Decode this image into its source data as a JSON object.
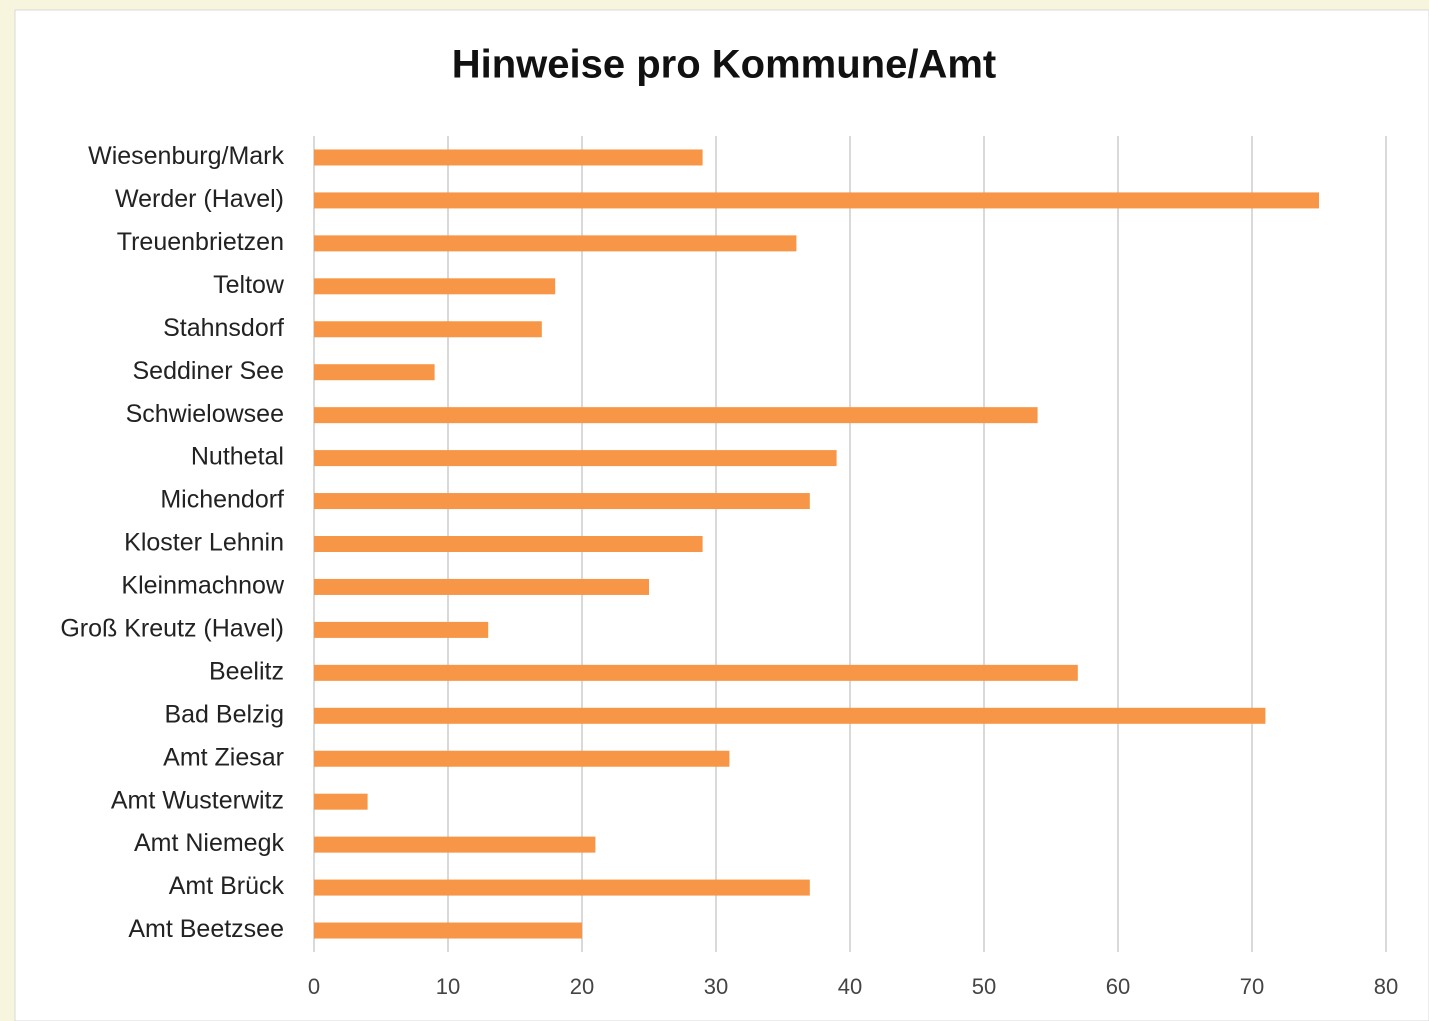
{
  "chart_data": {
    "type": "bar",
    "orientation": "horizontal",
    "title": "Hinweise pro Kommune/Amt",
    "categories": [
      "Wiesenburg/Mark",
      "Werder (Havel)",
      "Treuenbrietzen",
      "Teltow",
      "Stahnsdorf",
      "Seddiner See",
      "Schwielowsee",
      "Nuthetal",
      "Michendorf",
      "Kloster Lehnin",
      "Kleinmachnow",
      "Groß Kreutz (Havel)",
      "Beelitz",
      "Bad Belzig",
      "Amt Ziesar",
      "Amt Wusterwitz",
      "Amt Niemegk",
      "Amt Brück",
      "Amt Beetzsee"
    ],
    "values": [
      29,
      75,
      36,
      18,
      17,
      9,
      54,
      39,
      37,
      29,
      25,
      13,
      57,
      71,
      31,
      4,
      21,
      37,
      20
    ],
    "color": "#f79646",
    "xlim": [
      0,
      80
    ],
    "xticks": [
      0,
      10,
      20,
      30,
      40,
      50,
      60,
      70,
      80
    ],
    "grid": true
  }
}
